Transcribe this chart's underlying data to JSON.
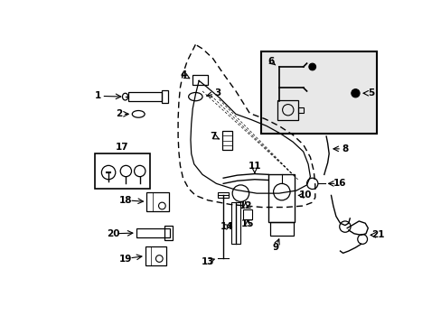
{
  "bg_color": "#ffffff",
  "black": "#000000",
  "gray_fill": "#e8e8e8",
  "light_fill": "#f0f0f0"
}
